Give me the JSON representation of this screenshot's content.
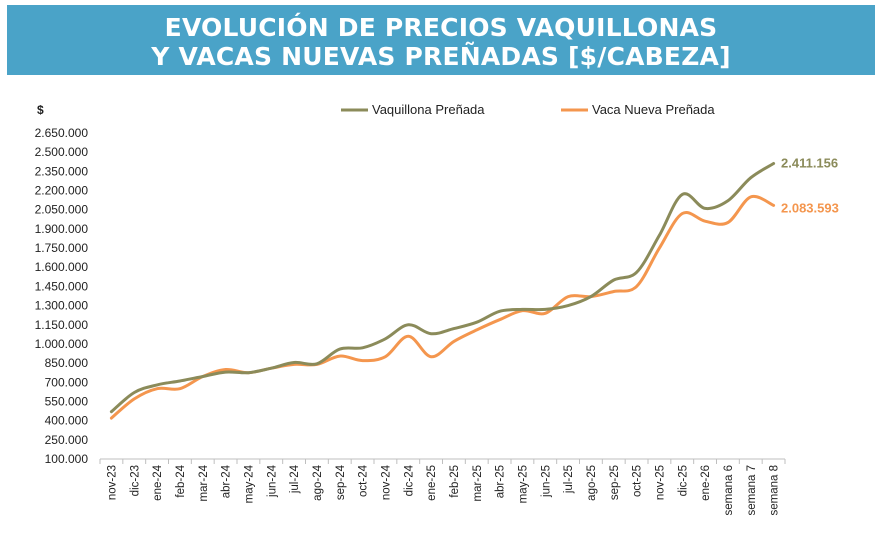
{
  "title": {
    "line1": "EVOLUCIÓN DE PRECIOS VAQUILLONAS",
    "line2": "Y VACAS NUEVAS PREÑADAS [$/CABEZA]"
  },
  "chart_data": {
    "type": "line",
    "title": "EVOLUCIÓN DE PRECIOS VAQUILLONAS Y VACAS NUEVAS PREÑADAS [$/CABEZA]",
    "ylabel": "$",
    "xlabel": "",
    "ylim": [
      100000,
      2650000
    ],
    "yticks": [
      "100.000",
      "250.000",
      "400.000",
      "550.000",
      "700.000",
      "850.000",
      "1.000.000",
      "1.150.000",
      "1.300.000",
      "1.450.000",
      "1.600.000",
      "1.750.000",
      "1.900.000",
      "2.050.000",
      "2.200.000",
      "2.350.000",
      "2.500.000",
      "2.650.000"
    ],
    "categories": [
      "nov-23",
      "dic-23",
      "ene-24",
      "feb-24",
      "mar-24",
      "abr-24",
      "may-24",
      "jun-24",
      "jul-24",
      "ago-24",
      "sep-24",
      "oct-24",
      "nov-24",
      "dic-24",
      "ene-25",
      "feb-25",
      "mar-25",
      "abr-25",
      "may-25",
      "jun-25",
      "jul-25",
      "ago-25",
      "sep-25",
      "oct-25",
      "nov-25",
      "dic-25",
      "ene-26",
      "semana 6",
      "semana 7",
      "semana 8"
    ],
    "legend_position": "top",
    "series": [
      {
        "name": "Vaquillona Preñada",
        "color": "#8b8b5a",
        "values": [
          470000,
          620000,
          680000,
          710000,
          745000,
          780000,
          775000,
          810000,
          855000,
          845000,
          960000,
          970000,
          1040000,
          1150000,
          1080000,
          1120000,
          1170000,
          1255000,
          1270000,
          1270000,
          1300000,
          1370000,
          1500000,
          1560000,
          1850000,
          2170000,
          2060000,
          2120000,
          2300000,
          2411156
        ],
        "end_label": "2.411.156"
      },
      {
        "name": "Vaca Nueva Preñada",
        "color": "#f4964e",
        "values": [
          420000,
          570000,
          650000,
          650000,
          745000,
          800000,
          775000,
          810000,
          840000,
          840000,
          905000,
          870000,
          900000,
          1060000,
          900000,
          1020000,
          1110000,
          1190000,
          1260000,
          1240000,
          1370000,
          1370000,
          1410000,
          1450000,
          1750000,
          2020000,
          1960000,
          1950000,
          2150000,
          2083593
        ],
        "end_label": "2.083.593"
      }
    ]
  }
}
